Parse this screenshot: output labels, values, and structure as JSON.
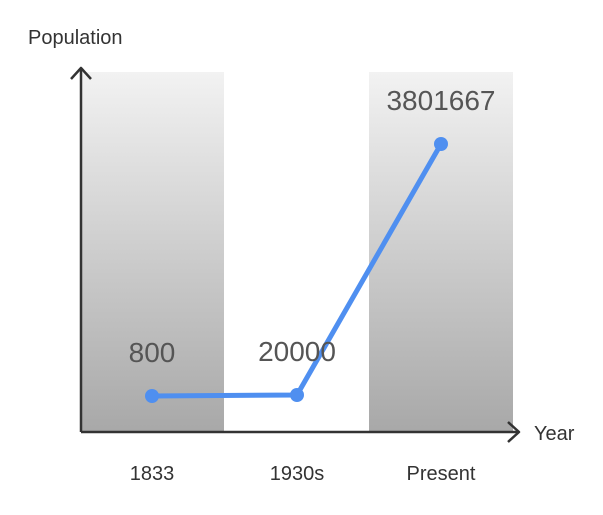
{
  "chart_data": {
    "type": "line",
    "ylabel": "Population",
    "xlabel": "Year",
    "categories": [
      "1833",
      "1930s",
      "Present"
    ],
    "values": [
      800,
      20000,
      3801667
    ],
    "data_labels": [
      "800",
      "20000",
      "3801667"
    ],
    "background_bands": [
      "1833",
      "Present"
    ],
    "grid": false,
    "legend": "none"
  },
  "colors": {
    "line": "#4f8ff0",
    "axis": "#333333",
    "text": "#555555",
    "band_top": "#f2f2f2",
    "band_bottom": "#a8a8a8"
  }
}
